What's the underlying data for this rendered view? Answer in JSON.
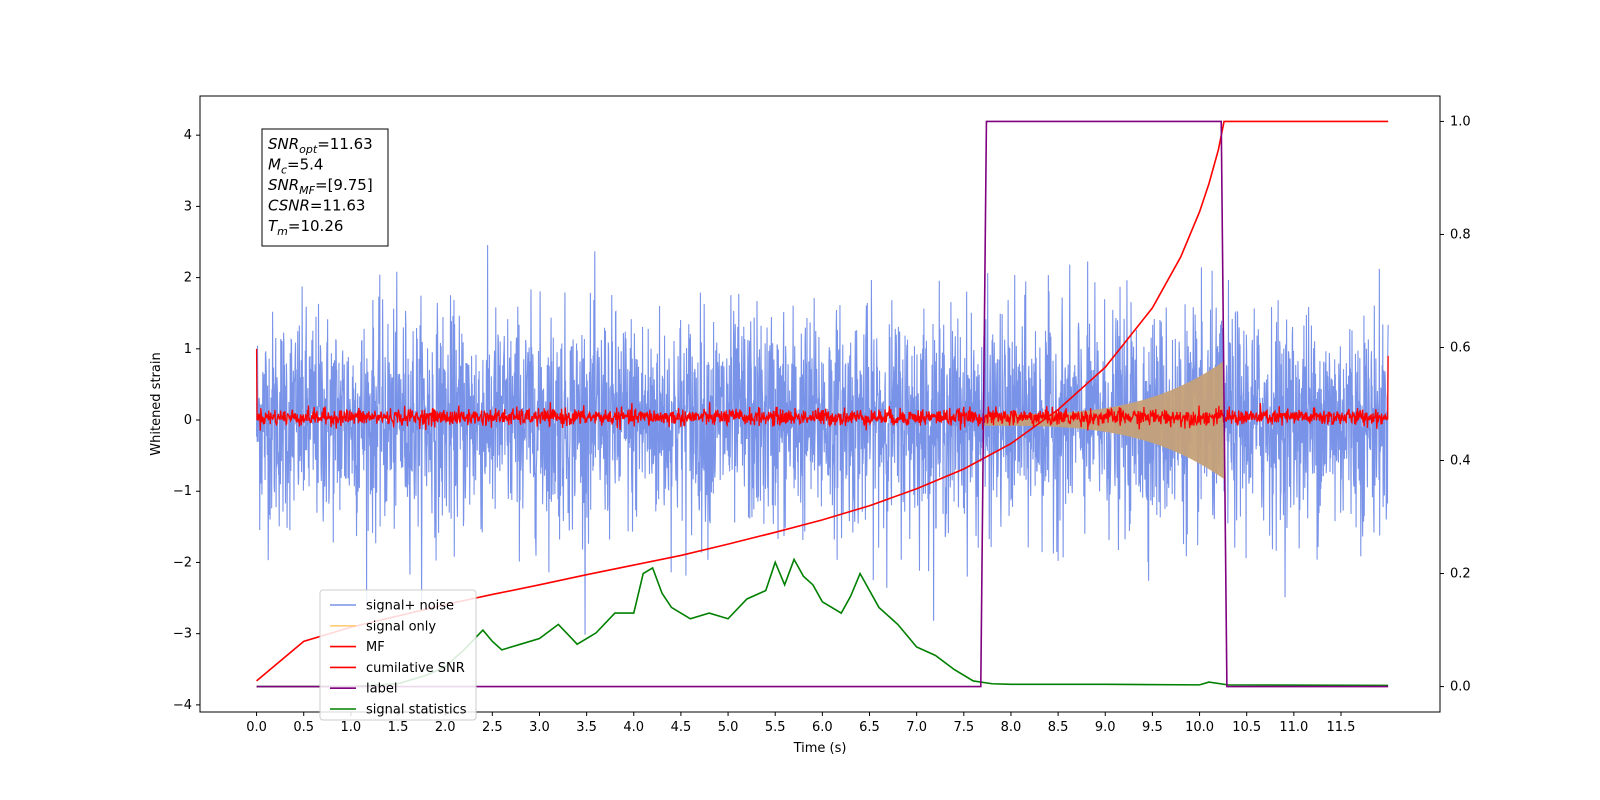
{
  "chart_data": {
    "type": "line",
    "xlabel": "Time (s)",
    "ylabel": "Whitened strain",
    "xlim": [
      -0.6,
      12.55
    ],
    "ylim_left": [
      -4.1,
      4.55
    ],
    "ylim_right": [
      -0.045,
      1.045
    ],
    "x_ticks": [
      0.0,
      0.5,
      1.0,
      1.5,
      2.0,
      2.5,
      3.0,
      3.5,
      4.0,
      4.5,
      5.0,
      5.5,
      6.0,
      6.5,
      7.0,
      7.5,
      8.0,
      8.5,
      9.0,
      9.5,
      10.0,
      10.5,
      11.0,
      11.5
    ],
    "x_tick_labels": [
      "0.0",
      "0.5",
      "1.0",
      "1.5",
      "2.0",
      "2.5",
      "3.0",
      "3.5",
      "4.0",
      "4.5",
      "5.0",
      "5.5",
      "6.0",
      "6.5",
      "7.0",
      "7.5",
      "8.0",
      "8.5",
      "9.0",
      "9.5",
      "10.0",
      "10.5",
      "11.0",
      "11.5"
    ],
    "y_ticks_left": [
      4,
      3,
      2,
      1,
      0,
      -1,
      -2,
      -3,
      -4
    ],
    "y_tick_labels_left": [
      "4",
      "3",
      "2",
      "1",
      "0",
      "−1",
      "−2",
      "−3",
      "−4"
    ],
    "y_ticks_right": [
      1.0,
      0.8,
      0.6,
      0.4,
      0.2,
      0.0
    ],
    "y_tick_labels_right": [
      "1.0",
      "0.8",
      "0.6",
      "0.4",
      "0.2",
      "0.0"
    ],
    "grid": false,
    "legend_position": "lower-left",
    "annotation": {
      "lines": [
        {
          "main": "SNR",
          "sub": "opt",
          "value": "=11.63"
        },
        {
          "main": "M",
          "sub": "c",
          "value": "=5.4"
        },
        {
          "main": "SNR",
          "sub": "MF",
          "value": "=[9.75]"
        },
        {
          "main": "CSNR",
          "sub": "",
          "value": "=11.63"
        },
        {
          "main": "T",
          "sub": "m",
          "value": "=10.26"
        }
      ]
    },
    "series": [
      {
        "name": "signal+ noise",
        "color": "#7993e8",
        "axis": "left",
        "kind": "noise",
        "x_start": 0.0,
        "x_end": 12.0,
        "amplitude_range": [
          -2.4,
          2.5
        ]
      },
      {
        "name": "signal only",
        "color": "#c4a078",
        "axis": "left",
        "kind": "chirp",
        "x_start": 7.7,
        "x_end": 10.26,
        "peak_amplitude": 0.75
      },
      {
        "name": "MF",
        "color": "#ff0000",
        "axis": "left",
        "kind": "noise",
        "x_start": 0.0,
        "x_end": 12.0,
        "amplitude_range": [
          -0.15,
          0.25
        ],
        "edge_values": [
          1.0,
          0.9
        ]
      },
      {
        "name": "cumilative SNR",
        "color": "#ff0000",
        "axis": "right",
        "x": [
          0.0,
          0.5,
          1.0,
          1.5,
          2.0,
          2.5,
          3.0,
          3.5,
          4.0,
          4.5,
          5.0,
          5.5,
          6.0,
          6.5,
          7.0,
          7.5,
          8.0,
          8.5,
          9.0,
          9.5,
          9.8,
          10.0,
          10.1,
          10.2,
          10.26,
          10.3,
          11.0,
          12.0
        ],
        "values": [
          0.01,
          0.08,
          0.105,
          0.125,
          0.145,
          0.163,
          0.18,
          0.198,
          0.215,
          0.232,
          0.252,
          0.273,
          0.295,
          0.32,
          0.35,
          0.385,
          0.43,
          0.49,
          0.565,
          0.67,
          0.76,
          0.84,
          0.89,
          0.95,
          1.0,
          1.0,
          1.0,
          1.0
        ]
      },
      {
        "name": "label",
        "color": "#800080",
        "axis": "right",
        "x": [
          0.0,
          7.68,
          7.74,
          10.23,
          10.29,
          12.0
        ],
        "values": [
          0.0,
          0.0,
          1.0,
          1.0,
          0.0,
          0.0
        ]
      },
      {
        "name": "signal statistics",
        "color": "#008000",
        "axis": "right",
        "x": [
          0.0,
          1.0,
          1.5,
          1.8,
          2.0,
          2.2,
          2.4,
          2.5,
          2.6,
          2.8,
          3.0,
          3.2,
          3.4,
          3.6,
          3.8,
          4.0,
          4.1,
          4.2,
          4.3,
          4.4,
          4.6,
          4.8,
          5.0,
          5.2,
          5.4,
          5.5,
          5.6,
          5.7,
          5.8,
          5.9,
          6.0,
          6.2,
          6.3,
          6.4,
          6.6,
          6.8,
          7.0,
          7.2,
          7.4,
          7.6,
          7.8,
          8.0,
          9.0,
          10.0,
          10.1,
          10.3,
          12.0
        ],
        "values": [
          0.0,
          0.0,
          0.005,
          0.02,
          0.035,
          0.065,
          0.1,
          0.08,
          0.065,
          0.075,
          0.085,
          0.11,
          0.075,
          0.095,
          0.13,
          0.13,
          0.2,
          0.21,
          0.165,
          0.14,
          0.12,
          0.13,
          0.12,
          0.155,
          0.17,
          0.22,
          0.18,
          0.225,
          0.195,
          0.18,
          0.15,
          0.13,
          0.16,
          0.2,
          0.14,
          0.11,
          0.07,
          0.055,
          0.03,
          0.01,
          0.005,
          0.004,
          0.004,
          0.003,
          0.008,
          0.003,
          0.002
        ]
      }
    ]
  }
}
